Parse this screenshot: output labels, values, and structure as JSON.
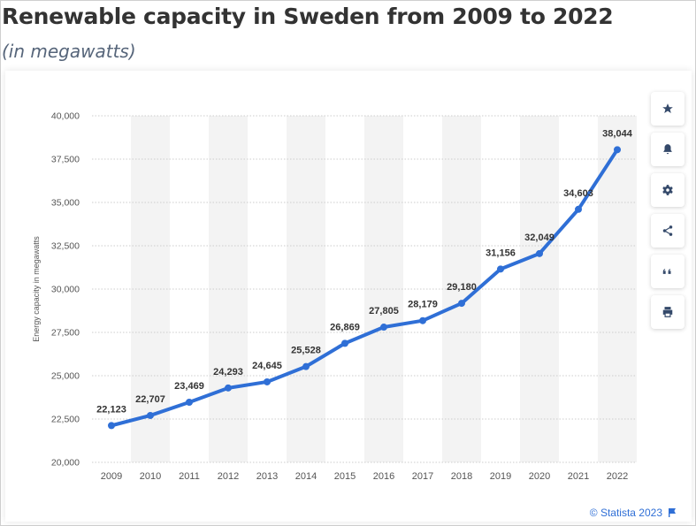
{
  "header": {
    "title": "Renewable capacity in Sweden from 2009 to 2022",
    "subtitle": "(in megawatts)"
  },
  "chart_data": {
    "type": "line",
    "title": "Renewable capacity in Sweden from 2009 to 2022",
    "subtitle": "(in megawatts)",
    "xlabel": "",
    "ylabel": "Energy capacity in megawatts",
    "categories": [
      "2009",
      "2010",
      "2011",
      "2012",
      "2013",
      "2014",
      "2015",
      "2016",
      "2017",
      "2018",
      "2019",
      "2020",
      "2021",
      "2022"
    ],
    "values": [
      22123,
      22707,
      23469,
      24293,
      24645,
      25528,
      26869,
      27805,
      28179,
      29180,
      31156,
      32049,
      34603,
      38044
    ],
    "value_labels": [
      "22,123",
      "22,707",
      "23,469",
      "24,293",
      "24,645",
      "25,528",
      "26,869",
      "27,805",
      "28,179",
      "29,180",
      "31,156",
      "32,049",
      "34,603",
      "38,044"
    ],
    "ylim": [
      20000,
      40000
    ],
    "yticks": [
      20000,
      22500,
      25000,
      27500,
      30000,
      32500,
      35000,
      37500,
      40000
    ],
    "ytick_labels": [
      "20,000",
      "22,500",
      "25,000",
      "27,500",
      "30,000",
      "32,500",
      "35,000",
      "37,500",
      "40,000"
    ],
    "grid": true,
    "alternating_column_bands": true,
    "legend": "none",
    "colors": {
      "line": "#2f6fd6",
      "band": "#f3f3f3",
      "grid": "#cccccc",
      "tick_text": "#555555",
      "label_text": "#333333"
    }
  },
  "toolbar": {
    "buttons": [
      {
        "name": "favorite-button",
        "icon": "star-icon"
      },
      {
        "name": "notification-button",
        "icon": "bell-icon"
      },
      {
        "name": "settings-button",
        "icon": "gear-icon"
      },
      {
        "name": "share-button",
        "icon": "share-icon"
      },
      {
        "name": "cite-button",
        "icon": "quote-icon"
      },
      {
        "name": "print-button",
        "icon": "print-icon"
      }
    ]
  },
  "credit": {
    "text": "© Statista 2023",
    "icon": "flag-icon"
  }
}
